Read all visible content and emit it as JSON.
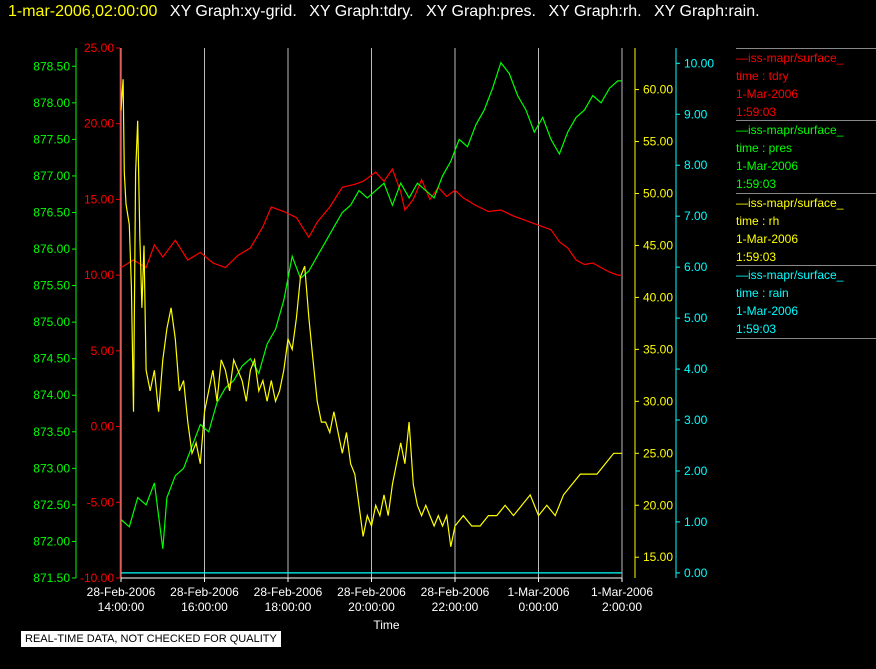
{
  "header": {
    "datetime": "1-mar-2006,02:00:00",
    "graphs": [
      "XY Graph:xy-grid.",
      "XY Graph:tdry.",
      "XY Graph:pres.",
      "XY Graph:rh.",
      "XY Graph:rain."
    ]
  },
  "colors": {
    "tdry": "#ff0000",
    "pres": "#00ff00",
    "rh": "#ffff00",
    "rain": "#00ffff",
    "grid": "#bbbbbb",
    "text": "#ffffff"
  },
  "legend": [
    {
      "series": "iss-mapr/surface_",
      "label": "time : tdry",
      "date": "1-Mar-2006",
      "time": "1:59:03",
      "color": "#ff0000"
    },
    {
      "series": "iss-mapr/surface_",
      "label": "time : pres",
      "date": "1-Mar-2006",
      "time": "1:59:03",
      "color": "#00ff00"
    },
    {
      "series": "iss-mapr/surface_",
      "label": "time : rh",
      "date": "1-Mar-2006",
      "time": "1:59:03",
      "color": "#ffff00"
    },
    {
      "series": "iss-mapr/surface_",
      "label": "time : rain",
      "date": "1-Mar-2006",
      "time": "1:59:03",
      "color": "#00ffff"
    }
  ],
  "note": "REAL-TIME DATA, NOT CHECKED FOR QUALITY",
  "chart_data": {
    "type": "line",
    "xlabel": "Time",
    "x_ticks": [
      {
        "date": "28-Feb-2006",
        "time": "14:00:00"
      },
      {
        "date": "28-Feb-2006",
        "time": "16:00:00"
      },
      {
        "date": "28-Feb-2006",
        "time": "18:00:00"
      },
      {
        "date": "28-Feb-2006",
        "time": "20:00:00"
      },
      {
        "date": "28-Feb-2006",
        "time": "22:00:00"
      },
      {
        "date": "1-Mar-2006",
        "time": "0:00:00"
      },
      {
        "date": "1-Mar-2006",
        "time": "2:00:00"
      }
    ],
    "x_hours": [
      0,
      2,
      4,
      6,
      8,
      10,
      12
    ],
    "x_range_hours": [
      0,
      12
    ],
    "x_origin": "28-Feb-2006 14:00:00",
    "grid": true,
    "axes": {
      "pres": {
        "range": [
          871.5,
          878.75
        ],
        "ticks": [
          "871.50",
          "872.00",
          "872.50",
          "873.00",
          "873.50",
          "874.00",
          "874.50",
          "875.00",
          "875.50",
          "876.00",
          "876.50",
          "877.00",
          "877.50",
          "878.00",
          "878.50"
        ]
      },
      "tdry": {
        "range": [
          -10,
          25
        ],
        "ticks": [
          "-10.00",
          "-5.00",
          "0.00",
          "5.00",
          "10.00",
          "15.00",
          "20.00",
          "25.00"
        ]
      },
      "rh": {
        "range": [
          13,
          64
        ],
        "ticks": [
          "15.00",
          "20.00",
          "25.00",
          "30.00",
          "35.00",
          "40.00",
          "45.00",
          "50.00",
          "55.00",
          "60.00"
        ]
      },
      "rain": {
        "range": [
          -0.1,
          10.3
        ],
        "ticks": [
          "0.00",
          "1.00",
          "2.00",
          "3.00",
          "4.00",
          "5.00",
          "6.00",
          "7.00",
          "8.00",
          "9.00",
          "10.00"
        ]
      }
    },
    "series": [
      {
        "key": "tdry",
        "points": [
          [
            0,
            10.5
          ],
          [
            0.3,
            11.0
          ],
          [
            0.6,
            10.5
          ],
          [
            0.8,
            12.0
          ],
          [
            1.0,
            11.2
          ],
          [
            1.3,
            12.3
          ],
          [
            1.6,
            11.0
          ],
          [
            1.9,
            11.5
          ],
          [
            2.2,
            10.8
          ],
          [
            2.5,
            10.5
          ],
          [
            2.8,
            11.3
          ],
          [
            3.1,
            11.8
          ],
          [
            3.4,
            13.2
          ],
          [
            3.6,
            14.5
          ],
          [
            3.9,
            14.2
          ],
          [
            4.2,
            13.8
          ],
          [
            4.5,
            12.5
          ],
          [
            4.7,
            13.5
          ],
          [
            5.0,
            14.5
          ],
          [
            5.3,
            15.8
          ],
          [
            5.6,
            16.0
          ],
          [
            5.8,
            16.2
          ],
          [
            6.1,
            16.8
          ],
          [
            6.3,
            16.2
          ],
          [
            6.5,
            17.0
          ],
          [
            6.7,
            15.5
          ],
          [
            6.8,
            14.3
          ],
          [
            7.0,
            15.0
          ],
          [
            7.2,
            16.3
          ],
          [
            7.4,
            15.0
          ],
          [
            7.6,
            15.8
          ],
          [
            7.8,
            15.2
          ],
          [
            8.0,
            15.6
          ],
          [
            8.2,
            15.1
          ],
          [
            8.5,
            14.6
          ],
          [
            8.8,
            14.2
          ],
          [
            9.1,
            14.3
          ],
          [
            9.4,
            13.9
          ],
          [
            9.7,
            13.6
          ],
          [
            10.0,
            13.3
          ],
          [
            10.3,
            13.0
          ],
          [
            10.5,
            12.2
          ],
          [
            10.7,
            11.8
          ],
          [
            10.9,
            11.0
          ],
          [
            11.1,
            10.7
          ],
          [
            11.3,
            10.8
          ],
          [
            11.5,
            10.5
          ],
          [
            11.7,
            10.2
          ],
          [
            11.9,
            10.0
          ],
          [
            12.0,
            10.0
          ]
        ]
      },
      {
        "key": "pres",
        "points": [
          [
            0,
            872.3
          ],
          [
            0.2,
            872.2
          ],
          [
            0.4,
            872.6
          ],
          [
            0.6,
            872.5
          ],
          [
            0.8,
            872.8
          ],
          [
            1.0,
            871.9
          ],
          [
            1.1,
            872.6
          ],
          [
            1.3,
            872.9
          ],
          [
            1.5,
            873.0
          ],
          [
            1.7,
            873.3
          ],
          [
            1.9,
            873.6
          ],
          [
            2.1,
            873.5
          ],
          [
            2.3,
            873.9
          ],
          [
            2.5,
            874.1
          ],
          [
            2.7,
            874.2
          ],
          [
            2.9,
            874.4
          ],
          [
            3.1,
            874.5
          ],
          [
            3.3,
            874.3
          ],
          [
            3.5,
            874.7
          ],
          [
            3.7,
            874.9
          ],
          [
            3.9,
            875.3
          ],
          [
            4.1,
            875.9
          ],
          [
            4.3,
            875.6
          ],
          [
            4.5,
            875.7
          ],
          [
            4.7,
            875.9
          ],
          [
            4.9,
            876.1
          ],
          [
            5.1,
            876.3
          ],
          [
            5.3,
            876.5
          ],
          [
            5.5,
            876.6
          ],
          [
            5.7,
            876.8
          ],
          [
            5.9,
            876.7
          ],
          [
            6.1,
            876.8
          ],
          [
            6.3,
            876.9
          ],
          [
            6.5,
            876.6
          ],
          [
            6.7,
            876.9
          ],
          [
            6.9,
            876.7
          ],
          [
            7.1,
            876.9
          ],
          [
            7.3,
            876.8
          ],
          [
            7.5,
            876.7
          ],
          [
            7.7,
            877.0
          ],
          [
            7.9,
            877.2
          ],
          [
            8.1,
            877.5
          ],
          [
            8.3,
            877.4
          ],
          [
            8.5,
            877.7
          ],
          [
            8.7,
            877.9
          ],
          [
            8.9,
            878.2
          ],
          [
            9.1,
            878.55
          ],
          [
            9.3,
            878.4
          ],
          [
            9.5,
            878.1
          ],
          [
            9.7,
            877.9
          ],
          [
            9.9,
            877.6
          ],
          [
            10.1,
            877.8
          ],
          [
            10.3,
            877.5
          ],
          [
            10.5,
            877.3
          ],
          [
            10.7,
            877.6
          ],
          [
            10.9,
            877.8
          ],
          [
            11.1,
            877.9
          ],
          [
            11.3,
            878.1
          ],
          [
            11.5,
            878.0
          ],
          [
            11.7,
            878.2
          ],
          [
            11.9,
            878.3
          ],
          [
            12.0,
            878.3
          ]
        ]
      },
      {
        "key": "rh",
        "points": [
          [
            0,
            58
          ],
          [
            0.05,
            61
          ],
          [
            0.08,
            52
          ],
          [
            0.12,
            49
          ],
          [
            0.2,
            47
          ],
          [
            0.25,
            41
          ],
          [
            0.3,
            29
          ],
          [
            0.35,
            52
          ],
          [
            0.4,
            57
          ],
          [
            0.45,
            46
          ],
          [
            0.5,
            39
          ],
          [
            0.55,
            45
          ],
          [
            0.6,
            33
          ],
          [
            0.7,
            31
          ],
          [
            0.8,
            33
          ],
          [
            0.9,
            29
          ],
          [
            1.0,
            34
          ],
          [
            1.1,
            37
          ],
          [
            1.2,
            39
          ],
          [
            1.3,
            36
          ],
          [
            1.4,
            31
          ],
          [
            1.5,
            32
          ],
          [
            1.6,
            28
          ],
          [
            1.7,
            25
          ],
          [
            1.8,
            26
          ],
          [
            1.9,
            24
          ],
          [
            2.0,
            29
          ],
          [
            2.1,
            31
          ],
          [
            2.2,
            33
          ],
          [
            2.3,
            30
          ],
          [
            2.4,
            34
          ],
          [
            2.5,
            33
          ],
          [
            2.6,
            31
          ],
          [
            2.7,
            34
          ],
          [
            2.8,
            33
          ],
          [
            2.9,
            32
          ],
          [
            3.0,
            30
          ],
          [
            3.1,
            33
          ],
          [
            3.2,
            34
          ],
          [
            3.3,
            31
          ],
          [
            3.4,
            32
          ],
          [
            3.5,
            30
          ],
          [
            3.6,
            32
          ],
          [
            3.7,
            30
          ],
          [
            3.8,
            31
          ],
          [
            3.9,
            33
          ],
          [
            4.0,
            36
          ],
          [
            4.1,
            35
          ],
          [
            4.2,
            38
          ],
          [
            4.3,
            42
          ],
          [
            4.4,
            43
          ],
          [
            4.5,
            38
          ],
          [
            4.6,
            34
          ],
          [
            4.7,
            30
          ],
          [
            4.8,
            28
          ],
          [
            4.9,
            28
          ],
          [
            5.0,
            27
          ],
          [
            5.1,
            29
          ],
          [
            5.2,
            27
          ],
          [
            5.3,
            25
          ],
          [
            5.4,
            27
          ],
          [
            5.5,
            24
          ],
          [
            5.6,
            23
          ],
          [
            5.7,
            20
          ],
          [
            5.8,
            17
          ],
          [
            5.9,
            19
          ],
          [
            6.0,
            18
          ],
          [
            6.1,
            20
          ],
          [
            6.2,
            19
          ],
          [
            6.3,
            21
          ],
          [
            6.4,
            19
          ],
          [
            6.5,
            22
          ],
          [
            6.6,
            24
          ],
          [
            6.7,
            26
          ],
          [
            6.8,
            24
          ],
          [
            6.9,
            28
          ],
          [
            7.0,
            22
          ],
          [
            7.1,
            20
          ],
          [
            7.2,
            19
          ],
          [
            7.3,
            20
          ],
          [
            7.4,
            19
          ],
          [
            7.5,
            18
          ],
          [
            7.6,
            19
          ],
          [
            7.7,
            18
          ],
          [
            7.8,
            19
          ],
          [
            7.9,
            16
          ],
          [
            8.0,
            18
          ],
          [
            8.2,
            19
          ],
          [
            8.4,
            18
          ],
          [
            8.6,
            18
          ],
          [
            8.8,
            19
          ],
          [
            9.0,
            19
          ],
          [
            9.2,
            20
          ],
          [
            9.4,
            19
          ],
          [
            9.6,
            20
          ],
          [
            9.8,
            21
          ],
          [
            10.0,
            19
          ],
          [
            10.2,
            20
          ],
          [
            10.4,
            19
          ],
          [
            10.6,
            21
          ],
          [
            10.8,
            22
          ],
          [
            11.0,
            23
          ],
          [
            11.2,
            23
          ],
          [
            11.4,
            23
          ],
          [
            11.6,
            24
          ],
          [
            11.8,
            25
          ],
          [
            12.0,
            25
          ]
        ]
      },
      {
        "key": "rain",
        "points": [
          [
            0,
            0
          ],
          [
            12,
            0
          ]
        ]
      }
    ]
  }
}
